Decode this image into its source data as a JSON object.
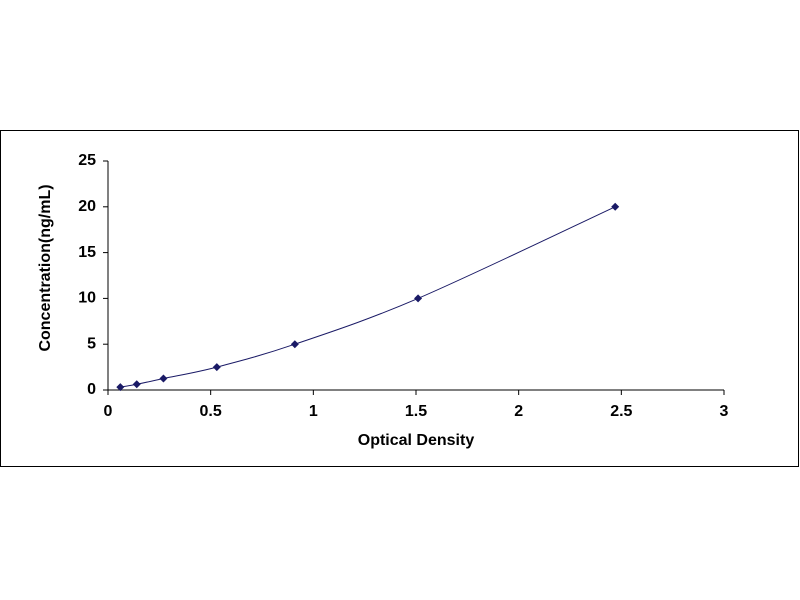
{
  "chart_data": {
    "type": "scatter",
    "x_label": "Optical Density",
    "y_label": "Concentration(ng/mL)",
    "x": [
      0.06,
      0.14,
      0.27,
      0.53,
      0.91,
      1.51,
      2.47
    ],
    "values": [
      0.31,
      0.63,
      1.25,
      2.5,
      5,
      10,
      20
    ],
    "color": "#1a1a66",
    "curve": true,
    "xlim": [
      0,
      3
    ],
    "xticks": [
      0,
      0.5,
      1,
      1.5,
      2,
      2.5,
      3
    ],
    "ylim": [
      0,
      25
    ],
    "yticks": [
      0,
      5,
      10,
      15,
      20,
      25
    ],
    "grid": false
  }
}
